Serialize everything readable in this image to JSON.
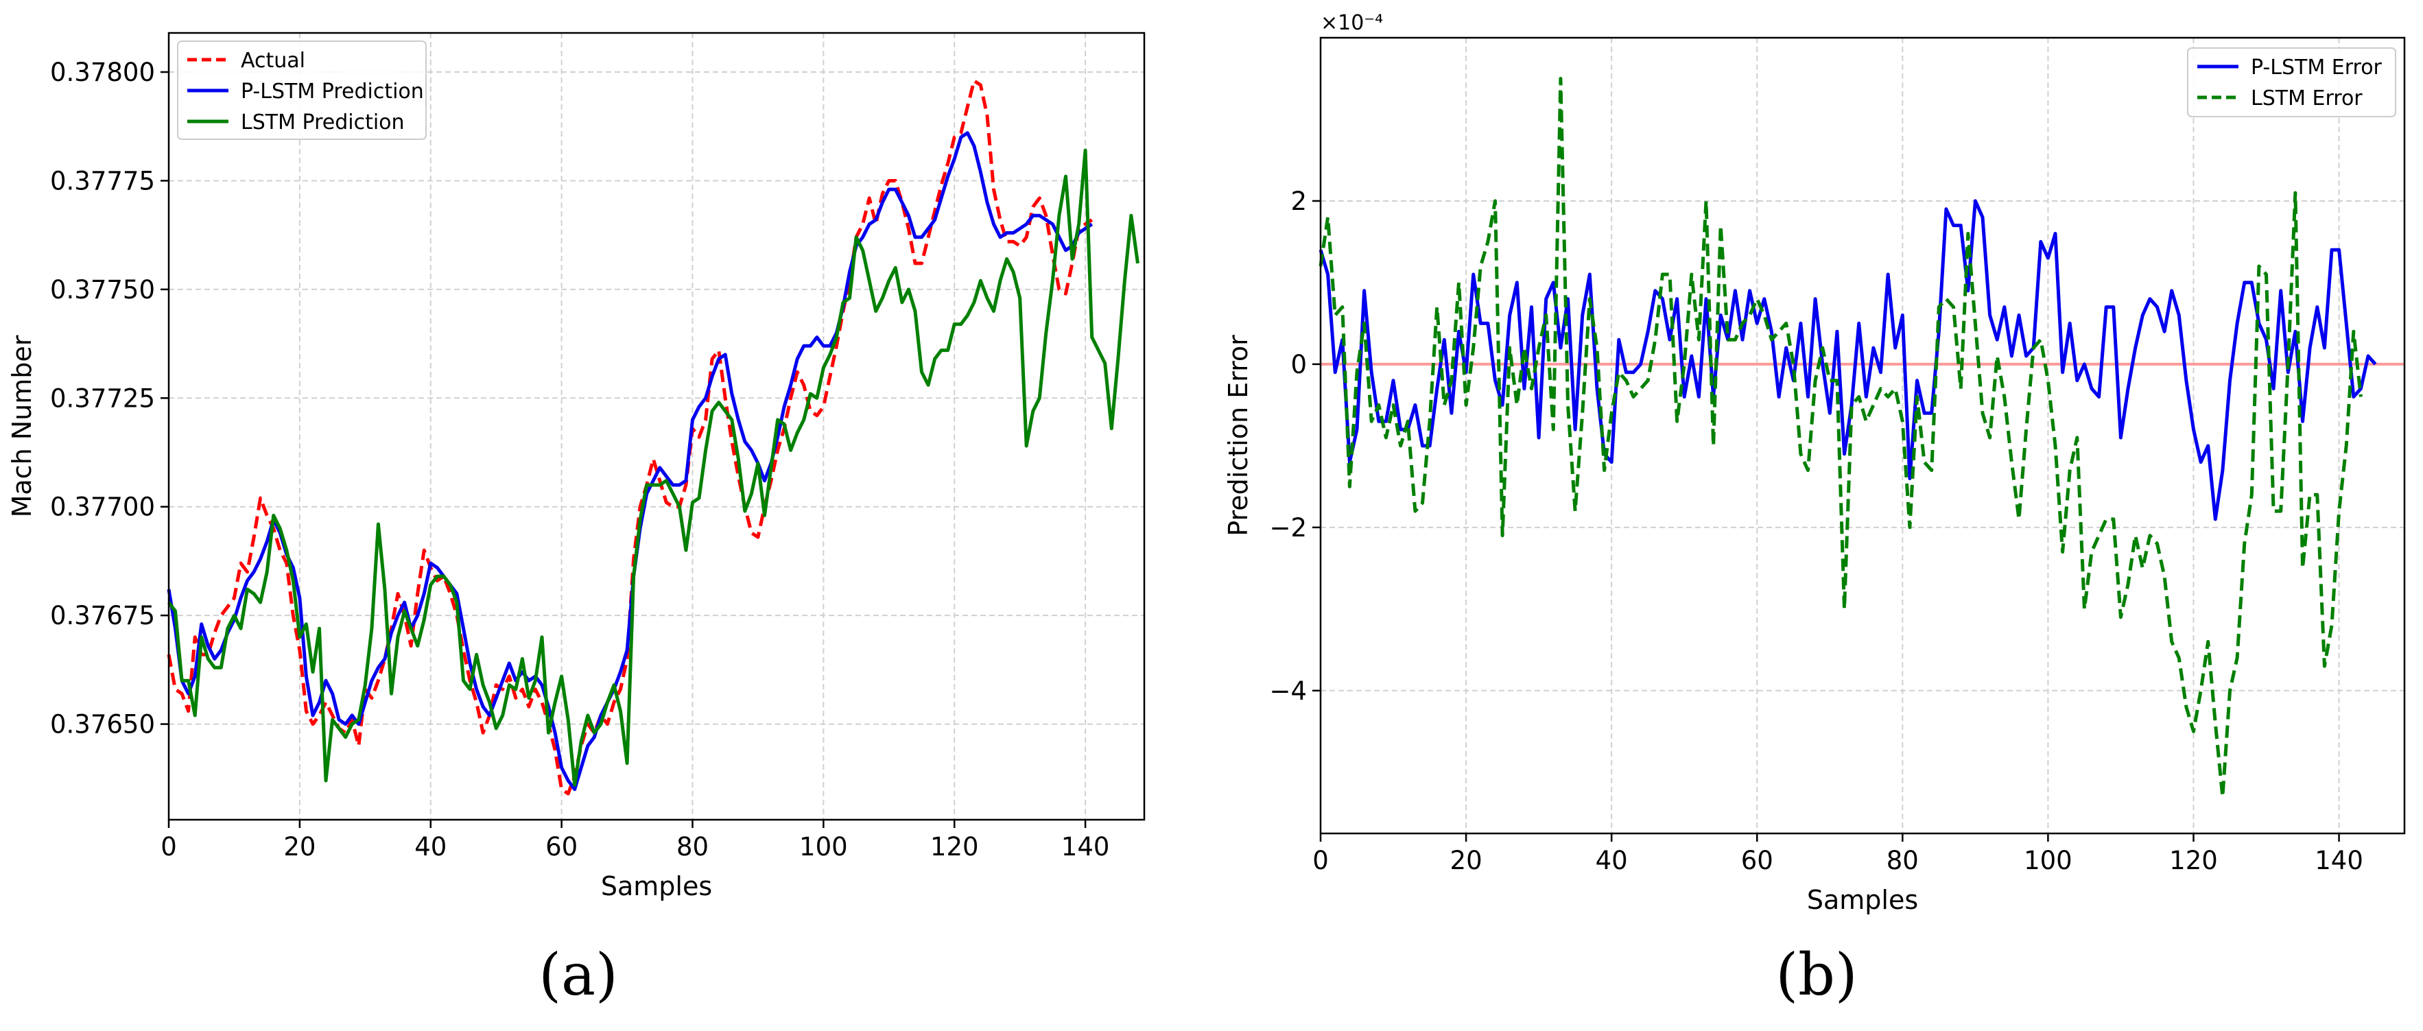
{
  "panel_labels": [
    "(a)",
    "(b)"
  ],
  "chart_data": [
    {
      "type": "line",
      "xlabel": "Samples",
      "ylabel": "Mach Number",
      "xlim": [
        0,
        149
      ],
      "ylim": [
        0.37628,
        0.37809
      ],
      "xticks": [
        0,
        20,
        40,
        60,
        80,
        100,
        120,
        140
      ],
      "yticks": [
        0.3765,
        0.37675,
        0.377,
        0.37725,
        0.3775,
        0.37775,
        0.378
      ],
      "ytick_labels": [
        "0.37650",
        "0.37675",
        "0.37700",
        "0.37725",
        "0.37750",
        "0.37775",
        "0.37800"
      ],
      "grid": true,
      "legend_position": "upper left",
      "series": [
        {
          "name": "Actual",
          "color": "#ff0000",
          "dash": "dashed",
          "values": [
            0.37666,
            0.37658,
            0.37657,
            0.37653,
            0.3767,
            0.37666,
            0.37666,
            0.37671,
            0.37675,
            0.37677,
            0.37679,
            0.37687,
            0.37685,
            0.37693,
            0.37702,
            0.37698,
            0.37695,
            0.3769,
            0.37687,
            0.37675,
            0.37667,
            0.37653,
            0.3765,
            0.37652,
            0.37655,
            0.37652,
            0.37649,
            0.37648,
            0.37651,
            0.37645,
            0.37658,
            0.37656,
            0.3766,
            0.37665,
            0.37672,
            0.3768,
            0.37675,
            0.37668,
            0.3768,
            0.3769,
            0.37686,
            0.37683,
            0.37684,
            0.3768,
            0.37675,
            0.37667,
            0.3766,
            0.37655,
            0.37648,
            0.37652,
            0.37659,
            0.37658,
            0.37661,
            0.37656,
            0.37658,
            0.37654,
            0.37658,
            0.37655,
            0.3765,
            0.37644,
            0.37635,
            0.37634,
            0.37638,
            0.37645,
            0.3765,
            0.37648,
            0.37652,
            0.3765,
            0.37655,
            0.37658,
            0.37665,
            0.37688,
            0.377,
            0.37705,
            0.37711,
            0.37706,
            0.37701,
            0.377,
            0.377,
            0.37705,
            0.37718,
            0.37716,
            0.3772,
            0.37734,
            0.37736,
            0.37725,
            0.37715,
            0.37707,
            0.377,
            0.37694,
            0.37693,
            0.377,
            0.37706,
            0.37713,
            0.37718,
            0.37725,
            0.37731,
            0.37728,
            0.37722,
            0.37721,
            0.37723,
            0.3773,
            0.37737,
            0.37745,
            0.37752,
            0.37762,
            0.37765,
            0.37771,
            0.37765,
            0.37772,
            0.37775,
            0.37775,
            0.3777,
            0.37764,
            0.37756,
            0.37756,
            0.37762,
            0.37768,
            0.37774,
            0.37779,
            0.37785,
            0.37786,
            0.37792,
            0.37798,
            0.37797,
            0.3779,
            0.37773,
            0.37766,
            0.37761,
            0.37761,
            0.3776,
            0.37762,
            0.37769,
            0.37771,
            0.37767,
            0.37758,
            0.3775,
            0.37749,
            0.37756,
            0.37764,
            0.37765,
            0.37766
          ]
        },
        {
          "name": "P-LSTM Prediction",
          "color": "#0000ee",
          "dash": "solid",
          "values": [
            0.37681,
            0.37672,
            0.3766,
            0.37657,
            0.37661,
            0.37673,
            0.37668,
            0.37665,
            0.37667,
            0.37671,
            0.37674,
            0.37679,
            0.37683,
            0.37685,
            0.37688,
            0.37692,
            0.37697,
            0.37694,
            0.37689,
            0.37686,
            0.37679,
            0.37661,
            0.37652,
            0.37655,
            0.3766,
            0.37657,
            0.37651,
            0.3765,
            0.37652,
            0.3765,
            0.37655,
            0.3766,
            0.37663,
            0.37665,
            0.37671,
            0.37675,
            0.37678,
            0.37672,
            0.37675,
            0.3768,
            0.37687,
            0.37686,
            0.37684,
            0.37682,
            0.3768,
            0.37672,
            0.37664,
            0.37658,
            0.37654,
            0.37652,
            0.37656,
            0.3766,
            0.37664,
            0.3766,
            0.37662,
            0.3766,
            0.37661,
            0.37659,
            0.37654,
            0.37648,
            0.3764,
            0.37637,
            0.37635,
            0.3764,
            0.37645,
            0.37647,
            0.37652,
            0.37655,
            0.37658,
            0.37662,
            0.37667,
            0.37684,
            0.37695,
            0.37703,
            0.37706,
            0.37709,
            0.37707,
            0.37705,
            0.37705,
            0.37706,
            0.3772,
            0.37723,
            0.37725,
            0.3773,
            0.37734,
            0.37735,
            0.37726,
            0.3772,
            0.37715,
            0.37713,
            0.3771,
            0.37706,
            0.3771,
            0.37716,
            0.37723,
            0.37728,
            0.37734,
            0.37737,
            0.37737,
            0.37739,
            0.37737,
            0.37737,
            0.3774,
            0.37746,
            0.37754,
            0.3776,
            0.37762,
            0.37765,
            0.37766,
            0.3777,
            0.37773,
            0.37773,
            0.3777,
            0.37767,
            0.37762,
            0.37762,
            0.37764,
            0.37766,
            0.37771,
            0.37776,
            0.3778,
            0.37785,
            0.37786,
            0.37783,
            0.37777,
            0.3777,
            0.37765,
            0.37762,
            0.37763,
            0.37763,
            0.37764,
            0.37765,
            0.37767,
            0.37767,
            0.37766,
            0.37765,
            0.37762,
            0.37759,
            0.3776,
            0.37763,
            0.37764,
            0.37765
          ]
        },
        {
          "name": "LSTM Prediction",
          "color": "#008000",
          "dash": "solid",
          "values": [
            0.37678,
            0.37676,
            0.3766,
            0.3766,
            0.37652,
            0.3767,
            0.37665,
            0.37663,
            0.37663,
            0.37672,
            0.37675,
            0.37672,
            0.37681,
            0.3768,
            0.37678,
            0.37685,
            0.37698,
            0.37695,
            0.3769,
            0.37683,
            0.3767,
            0.37673,
            0.37662,
            0.37672,
            0.37637,
            0.37651,
            0.37649,
            0.37647,
            0.3765,
            0.37651,
            0.37659,
            0.37672,
            0.37696,
            0.37681,
            0.37657,
            0.3767,
            0.37676,
            0.37672,
            0.37668,
            0.37674,
            0.37682,
            0.37684,
            0.37684,
            0.37682,
            0.37678,
            0.3766,
            0.37658,
            0.37666,
            0.37659,
            0.37655,
            0.37649,
            0.37652,
            0.37659,
            0.37658,
            0.37665,
            0.37656,
            0.3766,
            0.3767,
            0.37648,
            0.37655,
            0.37661,
            0.37651,
            0.37636,
            0.37646,
            0.37652,
            0.37648,
            0.3765,
            0.37655,
            0.37659,
            0.37653,
            0.37641,
            0.37684,
            0.37697,
            0.37705,
            0.37705,
            0.37705,
            0.37706,
            0.37703,
            0.377,
            0.3769,
            0.37701,
            0.37702,
            0.37713,
            0.37722,
            0.37724,
            0.37722,
            0.3772,
            0.37711,
            0.37699,
            0.37703,
            0.3771,
            0.37698,
            0.37709,
            0.3772,
            0.37719,
            0.37713,
            0.37717,
            0.3772,
            0.37726,
            0.37725,
            0.37732,
            0.37735,
            0.37739,
            0.37747,
            0.37748,
            0.37762,
            0.37759,
            0.37752,
            0.37745,
            0.37748,
            0.37752,
            0.37755,
            0.37747,
            0.3775,
            0.37745,
            0.37731,
            0.37728,
            0.37734,
            0.37736,
            0.37736,
            0.37742,
            0.37742,
            0.37744,
            0.37747,
            0.37752,
            0.37748,
            0.37745,
            0.37752,
            0.37757,
            0.37754,
            0.37748,
            0.37714,
            0.37722,
            0.37725,
            0.3774,
            0.37752,
            0.37767,
            0.37776,
            0.37757,
            0.37765,
            0.37782,
            0.37739,
            0.37736,
            0.37733,
            0.37718,
            0.37734,
            0.37752,
            0.37767,
            0.37756
          ]
        }
      ]
    },
    {
      "type": "line",
      "xlabel": "Samples",
      "ylabel": "Prediction Error",
      "scale_label": "×10⁻⁴",
      "xlim": [
        0,
        149
      ],
      "ylim": [
        -5.75,
        4.0
      ],
      "xticks": [
        0,
        20,
        40,
        60,
        80,
        100,
        120,
        140
      ],
      "yticks": [
        -4,
        -2,
        0,
        2
      ],
      "ytick_labels": [
        "−4",
        "−2",
        "0",
        "2"
      ],
      "grid": true,
      "legend_position": "upper right",
      "reference_line": {
        "y": 0,
        "color": "#ff9999"
      },
      "series": [
        {
          "name": "P-LSTM Error",
          "color": "#0000ee",
          "dash": "solid",
          "values": [
            1.4,
            1.1,
            -0.1,
            0.3,
            -1.2,
            -0.8,
            0.9,
            -0.1,
            -0.7,
            -0.7,
            -0.2,
            -0.8,
            -0.8,
            -0.5,
            -1.0,
            -1.0,
            -0.3,
            0.3,
            -0.6,
            0.4,
            -0.1,
            1.1,
            0.5,
            0.5,
            -0.2,
            -0.5,
            0.6,
            1.0,
            -0.3,
            0.7,
            -0.9,
            0.8,
            1.0,
            0.2,
            0.8,
            -0.8,
            0.6,
            1.1,
            -0.3,
            -1.1,
            -1.2,
            0.3,
            -0.1,
            -0.1,
            0.0,
            0.4,
            0.9,
            0.8,
            0.3,
            0.8,
            -0.4,
            0.1,
            -0.4,
            0.8,
            -0.4,
            0.6,
            0.3,
            0.9,
            0.3,
            0.9,
            0.5,
            0.8,
            0.4,
            -0.4,
            0.2,
            -0.2,
            0.5,
            -0.4,
            0.8,
            0.0,
            -0.6,
            0.4,
            -1.1,
            -0.5,
            0.5,
            -0.4,
            0.2,
            -0.1,
            1.1,
            0.2,
            0.6,
            -1.4,
            -0.2,
            -0.6,
            -0.6,
            0.4,
            1.9,
            1.7,
            1.7,
            0.9,
            2.0,
            1.8,
            0.6,
            0.3,
            0.7,
            0.1,
            0.6,
            0.1,
            0.2,
            1.5,
            1.3,
            1.6,
            -0.1,
            0.5,
            -0.2,
            0.0,
            -0.3,
            -0.4,
            0.7,
            0.7,
            -0.9,
            -0.3,
            0.2,
            0.6,
            0.8,
            0.7,
            0.4,
            0.9,
            0.6,
            -0.2,
            -0.8,
            -1.2,
            -1.0,
            -1.9,
            -1.3,
            -0.2,
            0.5,
            1.0,
            1.0,
            0.5,
            0.3,
            -0.3,
            0.9,
            -0.1,
            0.4,
            -0.7,
            0.2,
            0.7,
            0.2,
            1.4,
            1.4,
            0.5,
            -0.4,
            -0.3,
            0.1,
            0.0
          ]
        },
        {
          "name": "LSTM Error",
          "color": "#008000",
          "dash": "dashed",
          "values": [
            1.2,
            1.8,
            0.6,
            0.7,
            -1.5,
            -0.1,
            0.5,
            -0.7,
            -0.5,
            -0.9,
            -0.5,
            -1.0,
            -0.7,
            -1.8,
            -1.7,
            -0.7,
            0.7,
            -0.5,
            -0.2,
            1.0,
            -0.5,
            0.2,
            1.2,
            1.5,
            2.0,
            -2.1,
            0.2,
            -0.5,
            0.2,
            -0.3,
            0.2,
            0.6,
            -0.8,
            3.5,
            -0.5,
            -1.8,
            -0.6,
            0.8,
            0.2,
            -1.3,
            -0.6,
            -0.1,
            -0.2,
            -0.4,
            -0.3,
            -0.2,
            0.3,
            1.1,
            1.1,
            -0.7,
            0.0,
            1.1,
            0.3,
            2.0,
            -1.0,
            1.7,
            0.3,
            0.3,
            0.5,
            0.6,
            0.8,
            0.6,
            0.3,
            0.4,
            0.5,
            0.0,
            -1.1,
            -1.3,
            -0.2,
            0.2,
            -0.2,
            -0.2,
            -3.0,
            -0.5,
            -0.4,
            -0.7,
            -0.5,
            -0.3,
            -0.4,
            -0.3,
            -0.7,
            -2.0,
            -0.4,
            -1.2,
            -1.3,
            0.7,
            0.8,
            0.7,
            -0.3,
            1.6,
            0.5,
            -0.6,
            -0.9,
            0.1,
            -0.4,
            -1.2,
            -1.9,
            -0.8,
            0.2,
            0.3,
            -0.2,
            -1.0,
            -2.3,
            -1.3,
            -0.9,
            -3.0,
            -2.3,
            -2.1,
            -1.9,
            -1.9,
            -3.1,
            -2.7,
            -2.1,
            -2.5,
            -2.1,
            -2.2,
            -2.6,
            -3.4,
            -3.6,
            -4.2,
            -4.5,
            -4.0,
            -3.4,
            -4.4,
            -5.3,
            -4.0,
            -3.6,
            -2.2,
            -1.6,
            1.2,
            1.1,
            -1.8,
            -1.8,
            0.0,
            2.1,
            -2.5,
            -1.6,
            -1.6,
            -3.7,
            -3.2,
            -1.8,
            -1.0,
            0.4,
            -0.4
          ]
        }
      ]
    }
  ]
}
